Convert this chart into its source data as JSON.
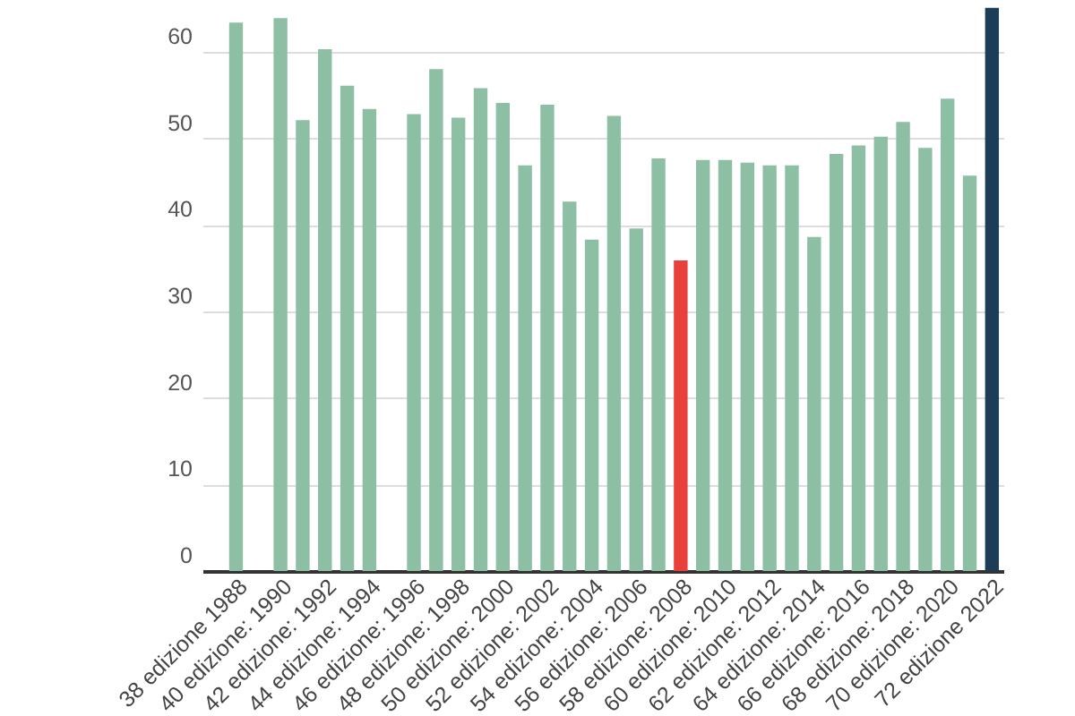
{
  "chart_data": {
    "type": "bar",
    "categories": [
      null,
      "38 edizione 1988",
      null,
      "40 edizione: 1990",
      null,
      "42 edizione: 1992",
      null,
      "44 edizione: 1994",
      null,
      "46 edizione: 1996",
      null,
      "48 edizione: 1998",
      null,
      "50 edizione: 2000",
      null,
      "52 edizione: 2002",
      null,
      "54 edizione: 2004",
      null,
      "56 edizione: 2006",
      null,
      "58 edizione: 2008",
      null,
      "60 edizione: 2010",
      null,
      "62 edizione: 2012",
      null,
      "64 edizione: 2014",
      null,
      "66 edizione: 2016",
      null,
      "68 edizione: 2018",
      null,
      "70 edizione: 2020",
      null,
      "72 edizione 2022"
    ],
    "values": [
      null,
      63.4,
      null,
      63.9,
      52.1,
      60.3,
      56.1,
      53.4,
      null,
      52.8,
      58.0,
      52.4,
      55.8,
      54.1,
      46.9,
      53.9,
      42.7,
      38.3,
      52.6,
      39.6,
      47.7,
      35.9,
      47.5,
      47.5,
      47.2,
      46.9,
      46.9,
      38.6,
      48.2,
      49.2,
      50.2,
      51.9,
      48.9,
      54.6,
      45.7,
      65.1
    ],
    "colors": [
      "#1c3d57",
      "#8dbfa4",
      "#8dbfa4",
      "#8dbfa4",
      "#8dbfa4",
      "#8dbfa4",
      "#8dbfa4",
      "#8dbfa4",
      "#8dbfa4",
      "#8dbfa4",
      "#8dbfa4",
      "#8dbfa4",
      "#8dbfa4",
      "#8dbfa4",
      "#8dbfa4",
      "#8dbfa4",
      "#8dbfa4",
      "#8dbfa4",
      "#8dbfa4",
      "#8dbfa4",
      "#8dbfa4",
      "#e8413c",
      "#8dbfa4",
      "#8dbfa4",
      "#8dbfa4",
      "#8dbfa4",
      "#8dbfa4",
      "#8dbfa4",
      "#8dbfa4",
      "#8dbfa4",
      "#8dbfa4",
      "#8dbfa4",
      "#8dbfa4",
      "#8dbfa4",
      "#8dbfa4",
      "#1c3d57"
    ],
    "ylim": [
      0,
      66
    ],
    "yticks": [
      0,
      10,
      20,
      30,
      40,
      50,
      60
    ],
    "grid": "y"
  }
}
